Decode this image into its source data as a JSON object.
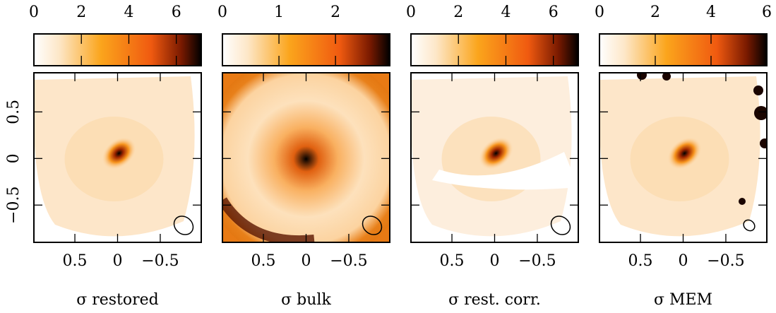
{
  "chart_data": [
    {
      "type": "heatmap",
      "title": "σ restored",
      "colorbar_lim": [
        0,
        7.05
      ],
      "colorbar_ticks": [
        0,
        2,
        4,
        6
      ],
      "xlim": [
        0.98,
        -0.98
      ],
      "xticks": [
        {
          "value": 0.5,
          "label": "0.5"
        },
        0,
        {
          "value": -0.5,
          "label": "−0.5"
        }
      ],
      "ylim": [
        -0.9,
        0.92
      ],
      "yticks": [
        {
          "value": -0.5,
          "label": "−0.5"
        },
        0,
        {
          "value": 0.5,
          "label": "0.5"
        }
      ]
    },
    {
      "type": "heatmap",
      "title": "σ bulk",
      "colorbar_lim": [
        0,
        2.96
      ],
      "colorbar_ticks": [
        0,
        1,
        2
      ],
      "xlim": [
        0.98,
        -0.98
      ],
      "xticks": [
        {
          "value": 0.5,
          "label": "0.5"
        },
        0,
        {
          "value": -0.5,
          "label": "−0.5"
        }
      ]
    },
    {
      "type": "heatmap",
      "title": "σ rest. corr.",
      "colorbar_lim": [
        0,
        7.05
      ],
      "colorbar_ticks": [
        0,
        2,
        4,
        6
      ],
      "xlim": [
        0.98,
        -0.98
      ],
      "xticks": [
        {
          "value": 0.5,
          "label": "0.5"
        },
        0,
        {
          "value": -0.5,
          "label": "−0.5"
        }
      ]
    },
    {
      "type": "heatmap",
      "title": "σ MEM",
      "colorbar_lim": [
        0,
        6
      ],
      "colorbar_ticks": [
        0,
        2,
        4,
        6
      ],
      "xlim": [
        0.98,
        -0.98
      ],
      "xticks": [
        {
          "value": 0.5,
          "label": "0.5"
        },
        0,
        {
          "value": -0.5,
          "label": "−0.5"
        }
      ]
    }
  ]
}
